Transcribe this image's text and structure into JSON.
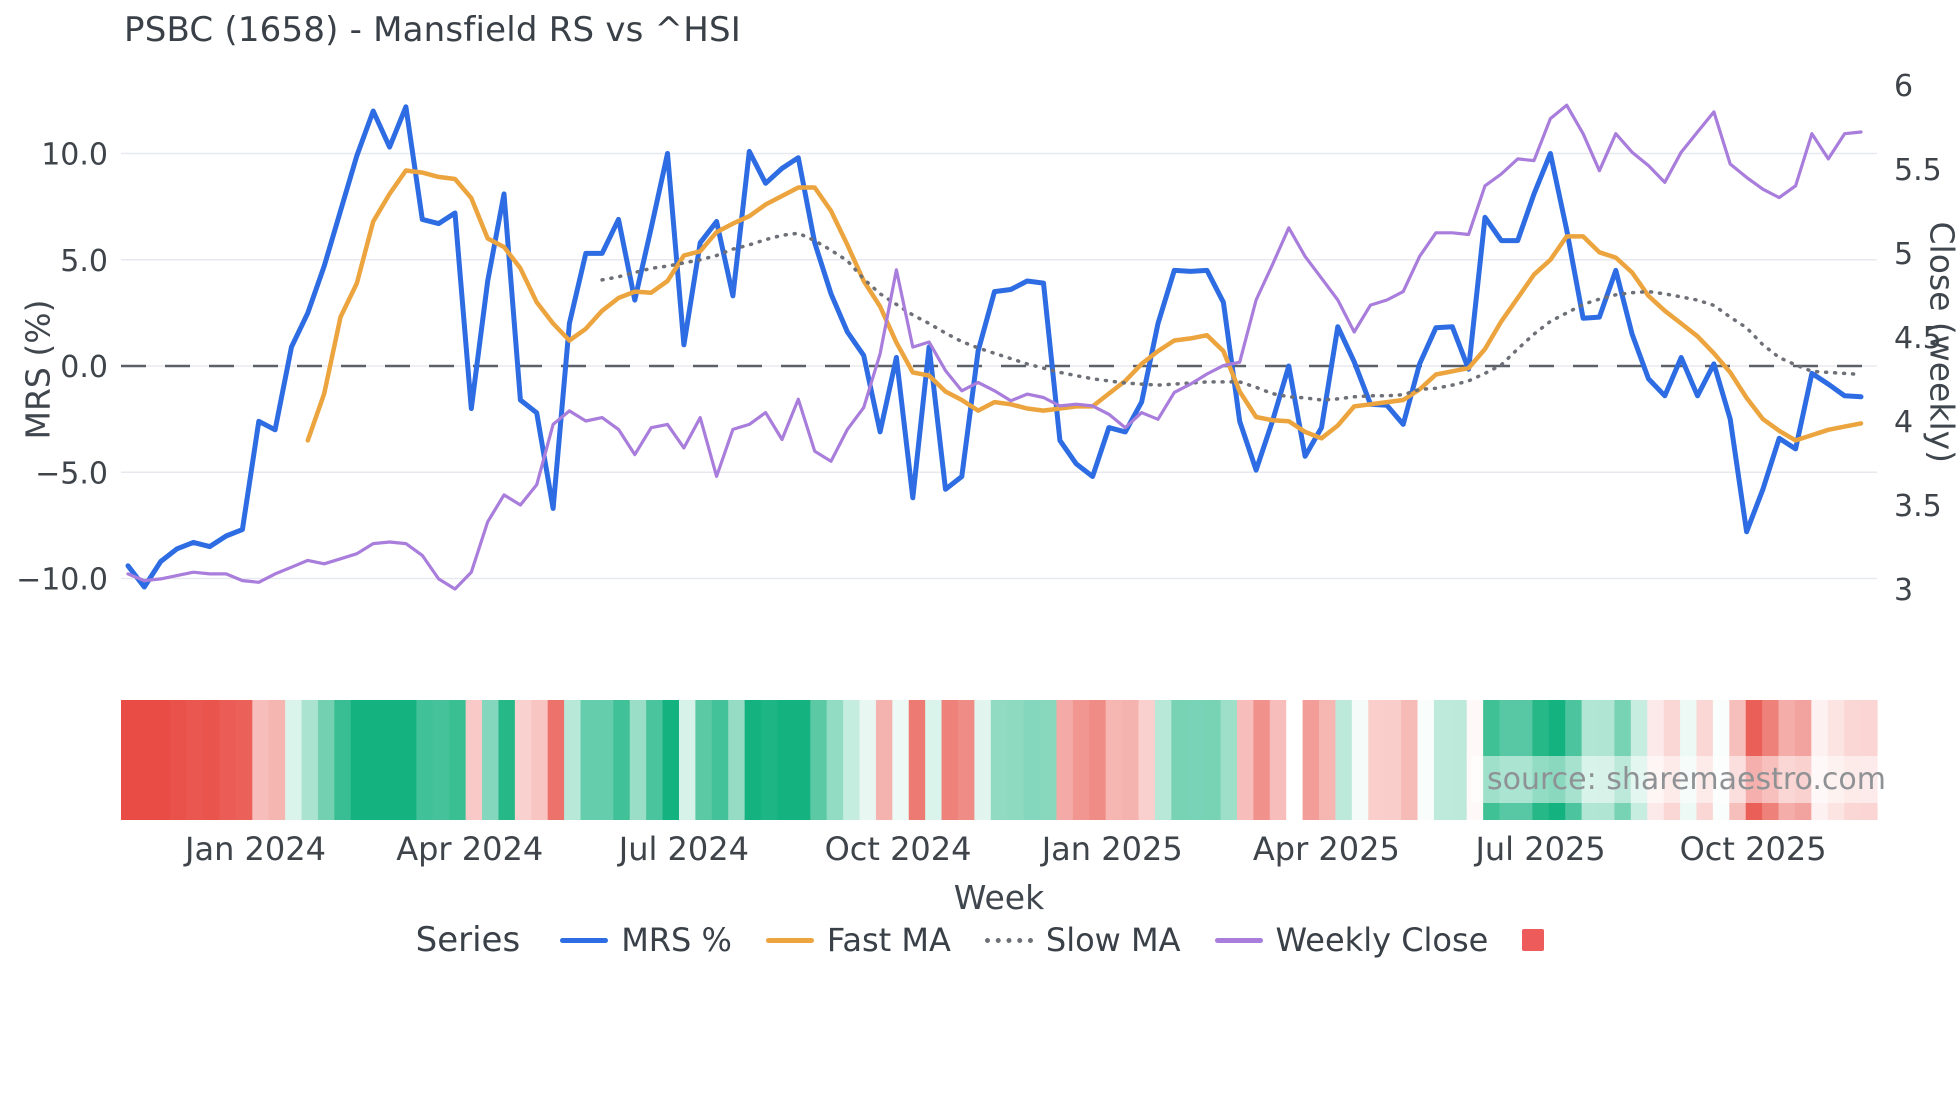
{
  "title": "PSBC (1658) - Mansfield RS vs ^HSI",
  "source_note": "source: sharemaestro.com",
  "colors": {
    "mrs": "#2d6ce2",
    "fast_ma": "#eca43e",
    "slow_ma": "#6d7076",
    "weekly_close": "#a87ddb",
    "zero_line": "#5c6068",
    "gridline": "#e8e9ef",
    "tick_text": "#3e444a",
    "heat_positive": "#14b27e",
    "heat_negative": "#e84c44",
    "legend_square": "#ee5b5b"
  },
  "axes": {
    "left": {
      "title": "MRS (%)",
      "tick_labels": [
        "10.0",
        "5.0",
        "0.0",
        "−5.0",
        "−10.0"
      ],
      "tick_values": [
        10,
        5,
        0,
        -5,
        -10
      ]
    },
    "right": {
      "title": "Close (weekly)",
      "tick_labels": [
        "6",
        "5.5",
        "5",
        "4.5",
        "4",
        "3.5",
        "3"
      ],
      "tick_values": [
        6,
        5.5,
        5,
        4.5,
        4,
        3.5,
        3
      ],
      "range": [
        3,
        6
      ]
    },
    "x": {
      "title": "Week",
      "tick_labels": [
        "Jan 2024",
        "Apr 2024",
        "Jul 2024",
        "Oct 2024",
        "Jan 2025",
        "Apr 2025",
        "Jul 2025",
        "Oct 2025"
      ],
      "tick_weeks": [
        7.8,
        20.9,
        34.0,
        47.1,
        60.2,
        73.3,
        86.4,
        99.4
      ]
    }
  },
  "legend": {
    "label": "Series",
    "entries": [
      {
        "label": "MRS %",
        "swatch": "line",
        "color": "#2d6ce2"
      },
      {
        "label": "Fast MA",
        "swatch": "line",
        "color": "#eca43e"
      },
      {
        "label": "Slow MA",
        "swatch": "dotted",
        "color": "#6d7076"
      },
      {
        "label": "Weekly Close",
        "swatch": "line",
        "color": "#a87ddb"
      },
      {
        "label": "",
        "swatch": "square",
        "color": "#ee5b5b"
      }
    ]
  },
  "chart_data": {
    "type": "line",
    "title": "PSBC (1658) - Mansfield RS vs ^HSI",
    "xlabel": "Week",
    "ylabel_left": "MRS (%)",
    "ylabel_right": "Close (weekly)",
    "weeks": 107,
    "x_range_weeks": [
      "2023-11",
      "2025-11"
    ],
    "left_axis_ticks": [
      10,
      5,
      0,
      -5,
      -10
    ],
    "right_axis_range": [
      3,
      6
    ],
    "grid": true,
    "legend_position": "bottom",
    "series": [
      {
        "name": "MRS %",
        "axis": "left",
        "style": "solid",
        "width": 5,
        "color": "#2d6ce2",
        "values": [
          -9.4,
          -10.4,
          -9.2,
          -8.6,
          -8.3,
          -8.5,
          -8.0,
          -7.7,
          -2.6,
          -3.0,
          0.9,
          2.5,
          4.7,
          7.3,
          9.9,
          12.0,
          10.3,
          12.2,
          6.9,
          6.7,
          7.2,
          -2.0,
          4.0,
          8.1,
          -1.6,
          -2.2,
          -6.7,
          2.0,
          5.3,
          5.3,
          6.9,
          3.1,
          6.5,
          10.0,
          1.0,
          5.8,
          6.8,
          3.3,
          10.1,
          8.6,
          9.3,
          9.8,
          5.8,
          3.4,
          1.6,
          0.5,
          -3.1,
          0.4,
          -6.2,
          0.9,
          -5.8,
          -5.2,
          0.7,
          3.5,
          3.6,
          4.0,
          3.9,
          -3.5,
          -4.6,
          -5.2,
          -2.9,
          -3.1,
          -1.7,
          2.0,
          4.5,
          4.45,
          4.5,
          3.0,
          -2.6,
          -4.9,
          -2.6,
          0.0,
          -4.25,
          -2.9,
          1.85,
          0.2,
          -1.8,
          -1.85,
          -2.75,
          0.1,
          1.8,
          1.85,
          -0.15,
          7.0,
          5.9,
          5.9,
          8.1,
          10.0,
          6.4,
          2.25,
          2.3,
          4.5,
          1.5,
          -0.6,
          -1.4,
          0.4,
          -1.4,
          0.1,
          -2.5,
          -7.8,
          -5.8,
          -3.4,
          -3.9,
          -0.35,
          -0.85,
          -1.4,
          -1.45
        ]
      },
      {
        "name": "Fast MA",
        "axis": "left",
        "style": "solid",
        "width": 4.5,
        "color": "#eca43e",
        "values": [
          null,
          null,
          null,
          null,
          null,
          null,
          null,
          null,
          null,
          null,
          null,
          -3.5,
          -1.3,
          2.3,
          3.9,
          6.8,
          8.1,
          9.2,
          9.1,
          8.9,
          8.8,
          7.9,
          6.0,
          5.6,
          4.6,
          3.0,
          2.0,
          1.2,
          1.75,
          2.6,
          3.2,
          3.5,
          3.45,
          4.0,
          5.2,
          5.4,
          6.3,
          6.7,
          7.05,
          7.6,
          8.0,
          8.4,
          8.4,
          7.3,
          5.7,
          4.0,
          2.8,
          1.1,
          -0.3,
          -0.45,
          -1.2,
          -1.6,
          -2.1,
          -1.7,
          -1.8,
          -2.0,
          -2.1,
          -2.0,
          -1.9,
          -1.9,
          -1.3,
          -0.7,
          0.1,
          0.7,
          1.2,
          1.3,
          1.45,
          0.7,
          -1.2,
          -2.4,
          -2.55,
          -2.6,
          -3.1,
          -3.4,
          -2.8,
          -1.9,
          -1.8,
          -1.7,
          -1.6,
          -1.1,
          -0.4,
          -0.25,
          -0.1,
          0.8,
          2.1,
          3.2,
          4.3,
          5.0,
          6.1,
          6.1,
          5.35,
          5.1,
          4.4,
          3.3,
          2.6,
          2.0,
          1.4,
          0.6,
          -0.3,
          -1.5,
          -2.5,
          -3.05,
          -3.5,
          -3.25,
          -3.0,
          -2.85,
          -2.7
        ]
      },
      {
        "name": "Slow MA",
        "axis": "left",
        "style": "dotted",
        "width": 3.5,
        "color": "#6d7076",
        "values": [
          null,
          null,
          null,
          null,
          null,
          null,
          null,
          null,
          null,
          null,
          null,
          null,
          null,
          null,
          null,
          null,
          null,
          null,
          null,
          null,
          null,
          null,
          null,
          null,
          null,
          null,
          null,
          null,
          null,
          4.05,
          4.2,
          4.4,
          4.6,
          4.7,
          4.85,
          5.0,
          5.2,
          5.5,
          5.7,
          5.95,
          6.15,
          6.25,
          5.9,
          5.45,
          4.95,
          4.1,
          3.4,
          2.9,
          2.4,
          2.0,
          1.55,
          1.15,
          0.85,
          0.6,
          0.35,
          0.1,
          -0.1,
          -0.3,
          -0.45,
          -0.6,
          -0.7,
          -0.8,
          -0.85,
          -0.9,
          -0.85,
          -0.8,
          -0.75,
          -0.75,
          -0.75,
          -1.0,
          -1.3,
          -1.45,
          -1.5,
          -1.6,
          -1.55,
          -1.45,
          -1.4,
          -1.4,
          -1.35,
          -1.1,
          -1.05,
          -0.9,
          -0.7,
          -0.35,
          0.05,
          0.8,
          1.5,
          2.1,
          2.5,
          2.9,
          3.15,
          3.35,
          3.45,
          3.5,
          3.4,
          3.25,
          3.1,
          2.85,
          2.3,
          1.8,
          1.0,
          0.4,
          0.05,
          -0.25,
          -0.3,
          -0.35,
          -0.4
        ]
      },
      {
        "name": "Weekly Close",
        "axis": "right",
        "style": "solid",
        "width": 3.2,
        "color": "#a87ddb",
        "values": [
          3.09,
          3.05,
          3.06,
          3.08,
          3.1,
          3.09,
          3.09,
          3.05,
          3.04,
          3.09,
          3.13,
          3.17,
          3.15,
          3.18,
          3.21,
          3.27,
          3.28,
          3.27,
          3.2,
          3.06,
          3.0,
          3.1,
          3.4,
          3.56,
          3.5,
          3.62,
          3.98,
          4.06,
          4.0,
          4.02,
          3.95,
          3.8,
          3.96,
          3.98,
          3.84,
          4.02,
          3.67,
          3.95,
          3.98,
          4.05,
          3.89,
          4.13,
          3.82,
          3.76,
          3.95,
          4.08,
          4.4,
          4.9,
          4.44,
          4.47,
          4.3,
          4.18,
          4.23,
          4.18,
          4.12,
          4.16,
          4.14,
          4.09,
          4.1,
          4.09,
          4.04,
          3.96,
          4.05,
          4.01,
          4.17,
          4.22,
          4.28,
          4.33,
          4.35,
          4.72,
          4.93,
          5.15,
          4.98,
          4.85,
          4.72,
          4.53,
          4.69,
          4.72,
          4.77,
          4.98,
          5.12,
          5.12,
          5.11,
          5.4,
          5.47,
          5.56,
          5.55,
          5.8,
          5.88,
          5.71,
          5.49,
          5.71,
          5.6,
          5.52,
          5.42,
          5.6,
          5.72,
          5.84,
          5.53,
          5.45,
          5.38,
          5.33,
          5.4,
          5.71,
          5.56,
          5.71,
          5.72
        ]
      }
    ],
    "heatmap": {
      "description": "weekly relative-strength color strip, red negative to green positive, derived from MRS % values",
      "positive_color": "#14b27e",
      "negative_color": "#e84c44",
      "neutral_color": "#ffffff",
      "saturation_at_abs_value": 9
    }
  }
}
